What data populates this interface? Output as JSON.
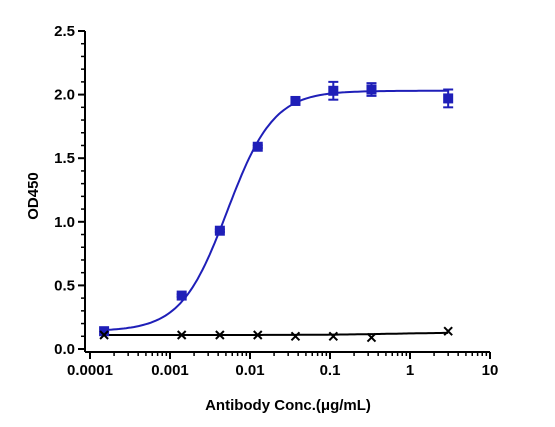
{
  "chart_data": {
    "type": "scatter",
    "xlabel": "Antibody Conc.(μg/mL)",
    "ylabel": "OD450",
    "xscale": "log",
    "xlim": [
      0.0001,
      10
    ],
    "ylim": [
      0,
      2.5
    ],
    "x_ticks": [
      0.0001,
      0.001,
      0.01,
      0.1,
      1,
      10
    ],
    "x_tick_labels": [
      "0.0001",
      "0.001",
      "0.01",
      "0.1",
      "1",
      "10"
    ],
    "y_ticks": [
      0,
      0.5,
      1.0,
      1.5,
      2.0,
      2.5
    ],
    "y_tick_labels": [
      "0.0",
      "0.5",
      "1.0",
      "1.5",
      "2.0",
      "2.5"
    ],
    "grid": false,
    "legend": "none",
    "series": [
      {
        "marker": "square",
        "color": "#1f1fb8",
        "x": [
          0.00015,
          0.0014,
          0.0042,
          0.0125,
          0.037,
          0.11,
          0.33,
          3.0
        ],
        "y": [
          0.14,
          0.42,
          0.93,
          1.59,
          1.95,
          2.03,
          2.04,
          1.97
        ],
        "error": [
          0.0,
          0.01,
          0.01,
          0.01,
          0.02,
          0.07,
          0.05,
          0.07
        ],
        "fit": {
          "bottom": 0.14,
          "top": 2.03,
          "ec50": 0.0052,
          "hill": 1.5
        }
      },
      {
        "marker": "x",
        "color": "#000000",
        "x": [
          0.00015,
          0.0014,
          0.0042,
          0.0125,
          0.037,
          0.11,
          0.33,
          3.0
        ],
        "y": [
          0.11,
          0.11,
          0.11,
          0.11,
          0.1,
          0.1,
          0.09,
          0.14
        ],
        "error": [
          0,
          0,
          0,
          0,
          0,
          0,
          0,
          0
        ],
        "fit": {
          "bottom": 0.11,
          "top": 0.13,
          "ec50": 0.6,
          "hill": 1.0
        }
      }
    ]
  }
}
